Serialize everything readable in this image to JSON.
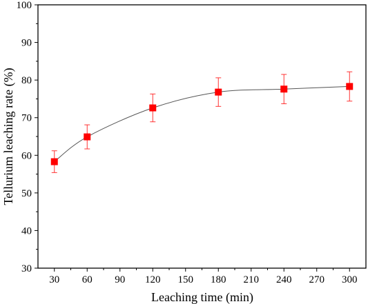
{
  "chart_data": {
    "type": "scatter",
    "title": "",
    "xlabel": "Leaching time (min)",
    "ylabel": "Tellurium leaching rate (%)",
    "xlim": [
      15,
      315
    ],
    "ylim": [
      30,
      100
    ],
    "xticks": [
      30,
      60,
      90,
      120,
      150,
      180,
      210,
      240,
      270,
      300
    ],
    "yticks": [
      30,
      40,
      50,
      60,
      70,
      80,
      90,
      100
    ],
    "grid": false,
    "legend": "none",
    "series": [
      {
        "x": [
          30,
          60,
          120,
          180,
          240,
          300
        ],
        "y": [
          58.3,
          64.9,
          72.6,
          76.8,
          77.6,
          78.3
        ],
        "error": [
          2.9,
          3.2,
          3.7,
          3.8,
          3.9,
          3.9
        ],
        "marker": "square",
        "marker_color": "#ff0000",
        "error_color": "#ff3333",
        "line": "smooth",
        "line_color": "#555555"
      }
    ]
  }
}
